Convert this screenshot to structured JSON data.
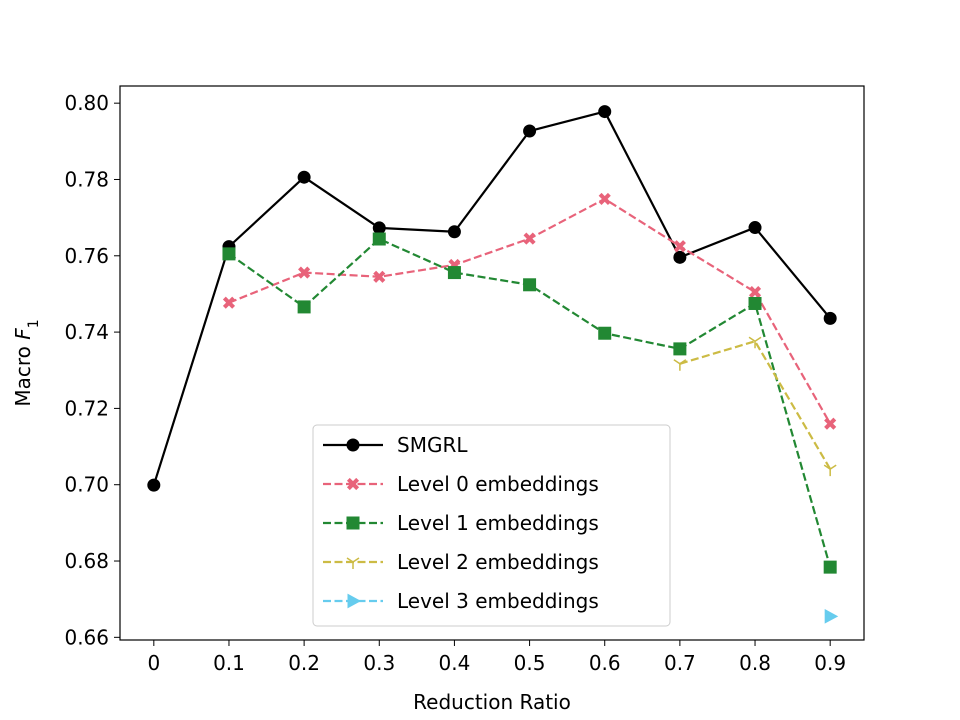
{
  "chart_data": {
    "type": "line",
    "title": "",
    "xlabel": "Reduction Ratio",
    "ylabel_prefix": "Macro ",
    "ylabel_var": "F",
    "ylabel_sub": "1",
    "x": [
      0,
      0.1,
      0.2,
      0.3,
      0.4,
      0.5,
      0.6,
      0.7,
      0.8,
      0.9
    ],
    "xticks": [
      0,
      0.1,
      0.2,
      0.3,
      0.4,
      0.5,
      0.6,
      0.7,
      0.8,
      0.9
    ],
    "xtick_labels": [
      "0",
      "0.1",
      "0.2",
      "0.3",
      "0.4",
      "0.5",
      "0.6",
      "0.7",
      "0.8",
      "0.9"
    ],
    "xlim": [
      -0.045,
      0.945
    ],
    "ylim": [
      0.6593,
      0.8045
    ],
    "yticks": [
      0.66,
      0.68,
      0.7,
      0.72,
      0.74,
      0.76,
      0.78,
      0.8
    ],
    "ytick_labels": [
      "0.66",
      "0.68",
      "0.70",
      "0.72",
      "0.74",
      "0.76",
      "0.78",
      "0.80"
    ],
    "grid": false,
    "legend_position": "lower-center",
    "series": [
      {
        "name": "SMGRL",
        "color": "#000000",
        "linestyle": "solid",
        "marker": "circle",
        "x": [
          0,
          0.1,
          0.2,
          0.3,
          0.4,
          0.5,
          0.6,
          0.7,
          0.8,
          0.9
        ],
        "values": [
          0.6999,
          0.7624,
          0.7806,
          0.7673,
          0.7663,
          0.7927,
          0.7978,
          0.7596,
          0.7674,
          0.7436
        ]
      },
      {
        "name": "Level 0 embeddings",
        "color": "#e8637a",
        "linestyle": "dashed",
        "marker": "x",
        "x": [
          0.1,
          0.2,
          0.3,
          0.4,
          0.5,
          0.6,
          0.7,
          0.8,
          0.9
        ],
        "values": [
          0.7477,
          0.7556,
          0.7545,
          0.7576,
          0.7645,
          0.7749,
          0.7625,
          0.7505,
          0.716
        ]
      },
      {
        "name": "Level 1 embeddings",
        "color": "#228833",
        "linestyle": "dashed",
        "marker": "square",
        "x": [
          0.1,
          0.2,
          0.3,
          0.4,
          0.5,
          0.6,
          0.7,
          0.8,
          0.9
        ],
        "values": [
          0.7605,
          0.7466,
          0.7644,
          0.7556,
          0.7524,
          0.7397,
          0.7356,
          0.7475,
          0.6784
        ]
      },
      {
        "name": "Level 2 embeddings",
        "color": "#ccbb44",
        "linestyle": "dashed",
        "marker": "tri",
        "x": [
          0.7,
          0.8,
          0.9
        ],
        "values": [
          0.7317,
          0.7376,
          0.7041
        ]
      },
      {
        "name": "Level 3 embeddings",
        "color": "#66ccee",
        "linestyle": "dashed",
        "marker": "triangle-right",
        "x": [
          0.9
        ],
        "values": [
          0.6655
        ]
      }
    ]
  }
}
